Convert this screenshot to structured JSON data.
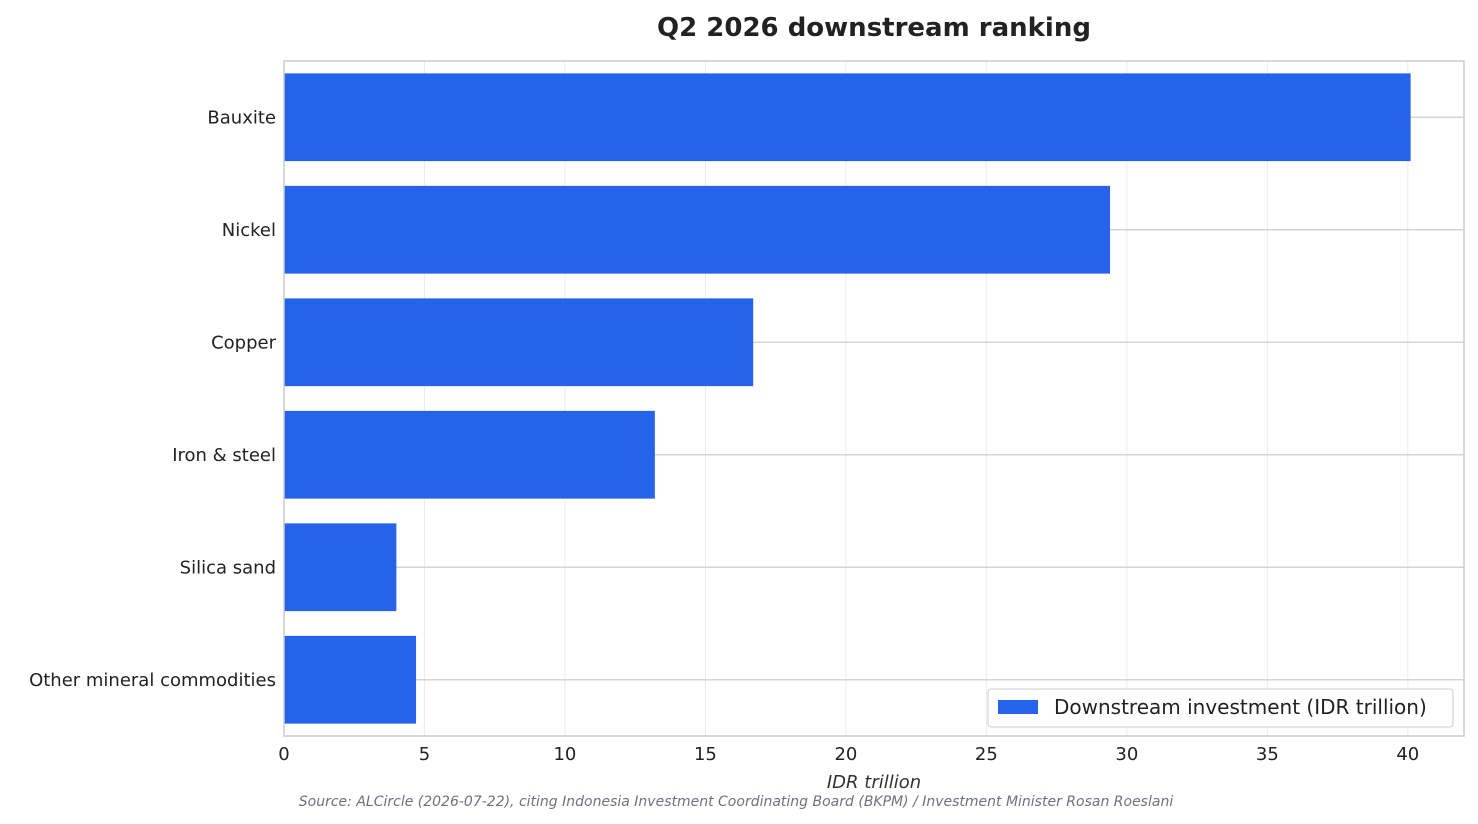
{
  "chart_data": {
    "type": "bar",
    "orientation": "horizontal",
    "title": "Q2 2026 downstream ranking",
    "categories": [
      "Bauxite",
      "Nickel",
      "Copper",
      "Iron & steel",
      "Silica sand",
      "Other mineral commodities"
    ],
    "series": [
      {
        "name": "Downstream investment (IDR trillion)",
        "values": [
          40.1,
          29.4,
          16.7,
          13.2,
          4.0,
          4.7
        ],
        "color": "#2563eb"
      }
    ],
    "xlabel": "IDR trillion",
    "ylabel": "",
    "xlim": [
      0,
      42
    ],
    "xticks": [
      0,
      5,
      10,
      15,
      20,
      25,
      30,
      35,
      40
    ],
    "grid": true,
    "legend_position": "bottom-right",
    "source": "Source: ALCircle (2026-07-22), citing Indonesia Investment Coordinating Board (BKPM) / Investment Minister Rosan Roeslani"
  }
}
